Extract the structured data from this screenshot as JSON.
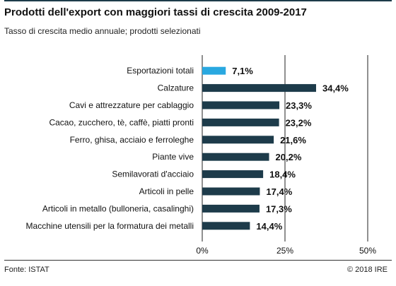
{
  "header": {
    "title": "Prodotti dell'export con maggiori tassi di crescita 2009-2017",
    "subtitle": "Tasso di crescita medio annuale; prodotti selezionati"
  },
  "footer": {
    "source": "Fonte: ISTAT",
    "copyright": "© 2018 IRE"
  },
  "chart_data": {
    "type": "bar",
    "orientation": "horizontal",
    "title": "Prodotti dell'export con maggiori tassi di crescita 2009-2017",
    "subtitle": "Tasso di crescita medio annuale; prodotti selezionati",
    "categories": [
      "Esportazioni totali",
      "Calzature",
      "Cavi e attrezzature per cablaggio",
      "Cacao, zucchero, tè, caffè, piatti pronti",
      "Ferro, ghisa, acciaio e ferroleghe",
      "Piante vive",
      "Semilavorati d'acciaio",
      "Articoli in pelle",
      "Articoli in metallo (bulloneria, casalinghi)",
      "Macchine utensili per la formatura dei metalli"
    ],
    "values": [
      7.1,
      34.4,
      23.3,
      23.2,
      21.6,
      20.2,
      18.4,
      17.4,
      17.3,
      14.4
    ],
    "value_labels": [
      "7,1%",
      "34,4%",
      "23,3%",
      "23,2%",
      "21,6%",
      "20,2%",
      "18,4%",
      "17,4%",
      "17,3%",
      "14,4%"
    ],
    "highlight_index": 0,
    "xlim": [
      0,
      50
    ],
    "xticks": [
      0,
      25,
      50
    ],
    "xtick_labels": [
      "0%",
      "25%",
      "50%"
    ],
    "grid": true,
    "colors": {
      "bar": "#1d3b4a",
      "highlight": "#29a8e0"
    }
  }
}
